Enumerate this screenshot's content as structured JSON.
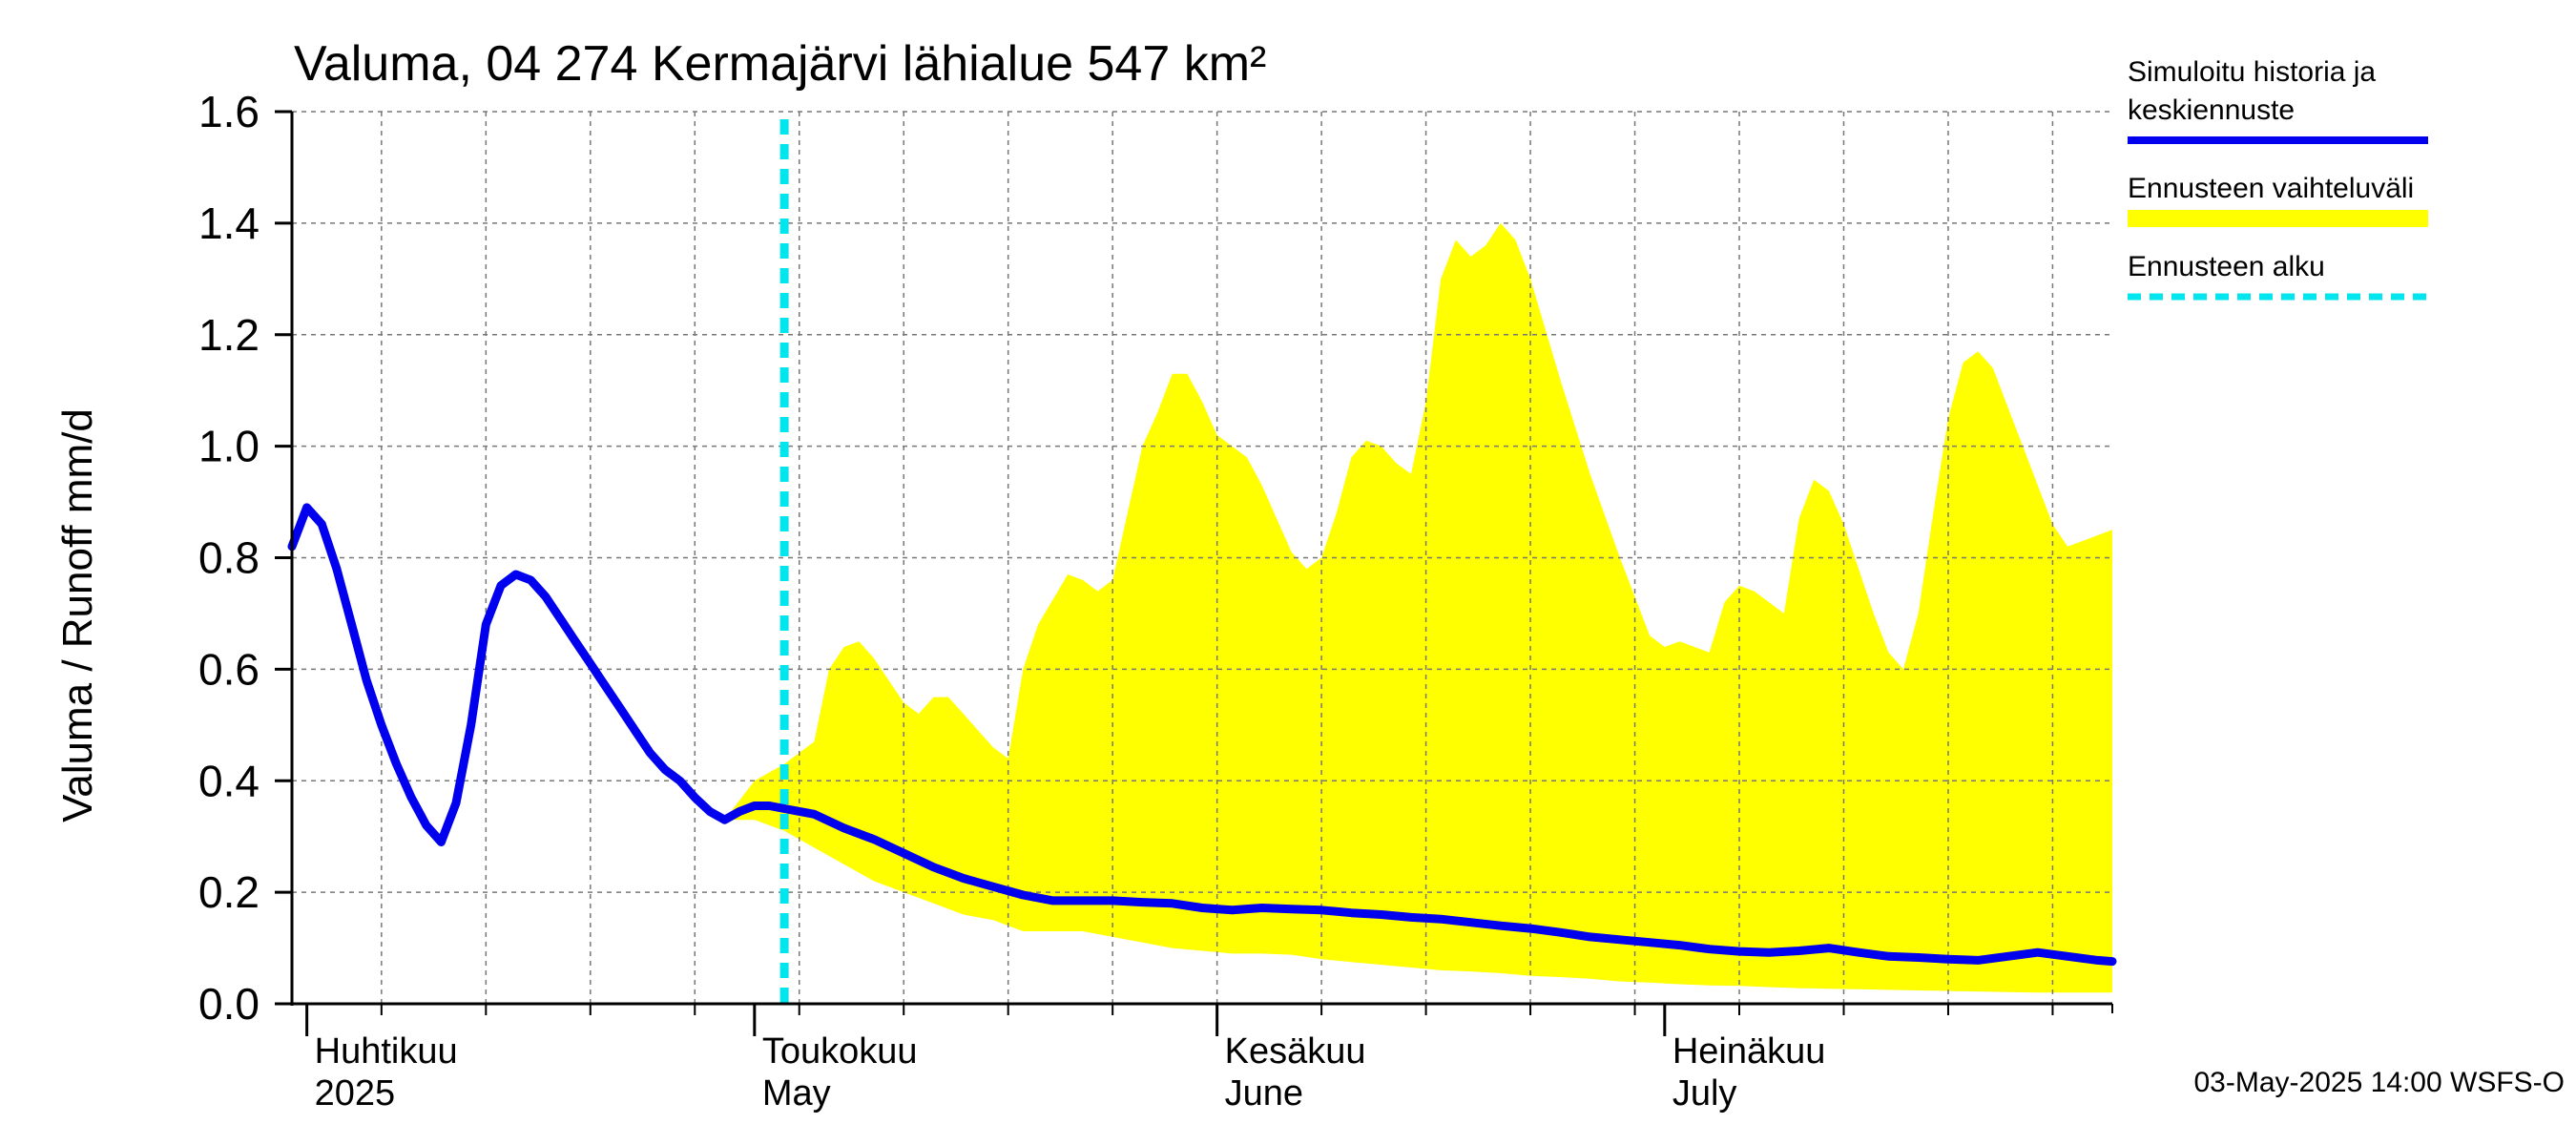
{
  "chart_data": {
    "type": "line",
    "title": "Valuma, 04 274 Kermajärvi lähialue 547 km²",
    "ylabel": "Valuma / Runoff    mm/d",
    "ylim": [
      0,
      1.6
    ],
    "yticks": [
      "0.0",
      "0.2",
      "0.4",
      "0.6",
      "0.8",
      "1.0",
      "1.2",
      "1.4",
      "1.6"
    ],
    "xlim": [
      "2025-03-31",
      "2025-07-31"
    ],
    "grid": true,
    "month_labels": [
      {
        "date": "2025-04-01",
        "fi": "Huhtikuu",
        "en": "2025"
      },
      {
        "date": "2025-05-01",
        "fi": "Toukokuu",
        "en": "May"
      },
      {
        "date": "2025-06-01",
        "fi": "Kesäkuu",
        "en": "June"
      },
      {
        "date": "2025-07-01",
        "fi": "Heinäkuu",
        "en": "July"
      }
    ],
    "forecast_start": "2025-05-03",
    "legend": {
      "placement": "right",
      "entries": [
        {
          "lines": [
            "Simuloitu historia ja",
            "keskiennuste"
          ],
          "color": "#0000ee",
          "style": "solid"
        },
        {
          "lines": [
            "Ennusteen vaihteluväli"
          ],
          "color": "#ffff00",
          "style": "band"
        },
        {
          "lines": [
            "Ennusteen alku"
          ],
          "color": "#00e5ee",
          "style": "dashed"
        }
      ]
    },
    "series": [
      {
        "name": "Simuloitu historia ja keskiennuste",
        "color": "#0000ee",
        "points": [
          [
            "2025-03-31",
            0.82
          ],
          [
            "2025-04-01",
            0.89
          ],
          [
            "2025-04-02",
            0.86
          ],
          [
            "2025-04-03",
            0.78
          ],
          [
            "2025-04-04",
            0.68
          ],
          [
            "2025-04-05",
            0.58
          ],
          [
            "2025-04-06",
            0.5
          ],
          [
            "2025-04-07",
            0.43
          ],
          [
            "2025-04-08",
            0.37
          ],
          [
            "2025-04-09",
            0.32
          ],
          [
            "2025-04-10",
            0.29
          ],
          [
            "2025-04-11",
            0.36
          ],
          [
            "2025-04-12",
            0.5
          ],
          [
            "2025-04-13",
            0.68
          ],
          [
            "2025-04-14",
            0.75
          ],
          [
            "2025-04-15",
            0.77
          ],
          [
            "2025-04-16",
            0.76
          ],
          [
            "2025-04-17",
            0.73
          ],
          [
            "2025-04-18",
            0.69
          ],
          [
            "2025-04-19",
            0.65
          ],
          [
            "2025-04-20",
            0.61
          ],
          [
            "2025-04-21",
            0.57
          ],
          [
            "2025-04-22",
            0.53
          ],
          [
            "2025-04-23",
            0.49
          ],
          [
            "2025-04-24",
            0.45
          ],
          [
            "2025-04-25",
            0.42
          ],
          [
            "2025-04-26",
            0.4
          ],
          [
            "2025-04-27",
            0.37
          ],
          [
            "2025-04-28",
            0.345
          ],
          [
            "2025-04-29",
            0.33
          ],
          [
            "2025-04-30",
            0.345
          ],
          [
            "2025-05-01",
            0.355
          ],
          [
            "2025-05-02",
            0.355
          ],
          [
            "2025-05-03",
            0.35
          ],
          [
            "2025-05-05",
            0.34
          ],
          [
            "2025-05-07",
            0.315
          ],
          [
            "2025-05-09",
            0.295
          ],
          [
            "2025-05-11",
            0.27
          ],
          [
            "2025-05-13",
            0.245
          ],
          [
            "2025-05-15",
            0.225
          ],
          [
            "2025-05-17",
            0.21
          ],
          [
            "2025-05-19",
            0.195
          ],
          [
            "2025-05-21",
            0.185
          ],
          [
            "2025-05-23",
            0.185
          ],
          [
            "2025-05-25",
            0.185
          ],
          [
            "2025-05-27",
            0.182
          ],
          [
            "2025-05-29",
            0.18
          ],
          [
            "2025-05-31",
            0.172
          ],
          [
            "2025-06-02",
            0.168
          ],
          [
            "2025-06-04",
            0.172
          ],
          [
            "2025-06-06",
            0.17
          ],
          [
            "2025-06-08",
            0.168
          ],
          [
            "2025-06-10",
            0.163
          ],
          [
            "2025-06-12",
            0.16
          ],
          [
            "2025-06-14",
            0.155
          ],
          [
            "2025-06-16",
            0.152
          ],
          [
            "2025-06-18",
            0.146
          ],
          [
            "2025-06-20",
            0.14
          ],
          [
            "2025-06-22",
            0.135
          ],
          [
            "2025-06-24",
            0.128
          ],
          [
            "2025-06-26",
            0.12
          ],
          [
            "2025-06-28",
            0.115
          ],
          [
            "2025-06-30",
            0.11
          ],
          [
            "2025-07-02",
            0.105
          ],
          [
            "2025-07-04",
            0.098
          ],
          [
            "2025-07-06",
            0.094
          ],
          [
            "2025-07-08",
            0.092
          ],
          [
            "2025-07-10",
            0.095
          ],
          [
            "2025-07-12",
            0.1
          ],
          [
            "2025-07-14",
            0.092
          ],
          [
            "2025-07-16",
            0.085
          ],
          [
            "2025-07-18",
            0.083
          ],
          [
            "2025-07-20",
            0.08
          ],
          [
            "2025-07-22",
            0.078
          ],
          [
            "2025-07-24",
            0.085
          ],
          [
            "2025-07-26",
            0.092
          ],
          [
            "2025-07-28",
            0.085
          ],
          [
            "2025-07-30",
            0.078
          ],
          [
            "2025-07-31",
            0.076
          ]
        ]
      }
    ],
    "band": {
      "name": "Ennusteen vaihteluväli",
      "color": "#ffff00",
      "upper": [
        [
          "2025-04-29",
          0.33
        ],
        [
          "2025-05-01",
          0.4
        ],
        [
          "2025-05-03",
          0.43
        ],
        [
          "2025-05-05",
          0.47
        ],
        [
          "2025-05-06",
          0.6
        ],
        [
          "2025-05-07",
          0.64
        ],
        [
          "2025-05-08",
          0.65
        ],
        [
          "2025-05-09",
          0.62
        ],
        [
          "2025-05-10",
          0.58
        ],
        [
          "2025-05-11",
          0.54
        ],
        [
          "2025-05-12",
          0.52
        ],
        [
          "2025-05-13",
          0.55
        ],
        [
          "2025-05-14",
          0.55
        ],
        [
          "2025-05-15",
          0.52
        ],
        [
          "2025-05-16",
          0.49
        ],
        [
          "2025-05-17",
          0.46
        ],
        [
          "2025-05-18",
          0.44
        ],
        [
          "2025-05-19",
          0.6
        ],
        [
          "2025-05-20",
          0.68
        ],
        [
          "2025-05-22",
          0.77
        ],
        [
          "2025-05-23",
          0.76
        ],
        [
          "2025-05-24",
          0.74
        ],
        [
          "2025-05-25",
          0.76
        ],
        [
          "2025-05-26",
          0.88
        ],
        [
          "2025-05-27",
          1.0
        ],
        [
          "2025-05-28",
          1.06
        ],
        [
          "2025-05-29",
          1.13
        ],
        [
          "2025-05-30",
          1.13
        ],
        [
          "2025-05-31",
          1.08
        ],
        [
          "2025-06-01",
          1.02
        ],
        [
          "2025-06-02",
          1.0
        ],
        [
          "2025-06-03",
          0.98
        ],
        [
          "2025-06-04",
          0.93
        ],
        [
          "2025-06-05",
          0.87
        ],
        [
          "2025-06-06",
          0.81
        ],
        [
          "2025-06-07",
          0.78
        ],
        [
          "2025-06-08",
          0.8
        ],
        [
          "2025-06-09",
          0.88
        ],
        [
          "2025-06-10",
          0.98
        ],
        [
          "2025-06-11",
          1.01
        ],
        [
          "2025-06-12",
          1.0
        ],
        [
          "2025-06-13",
          0.97
        ],
        [
          "2025-06-14",
          0.95
        ],
        [
          "2025-06-15",
          1.08
        ],
        [
          "2025-06-16",
          1.3
        ],
        [
          "2025-06-17",
          1.37
        ],
        [
          "2025-06-18",
          1.34
        ],
        [
          "2025-06-19",
          1.36
        ],
        [
          "2025-06-20",
          1.4
        ],
        [
          "2025-06-21",
          1.37
        ],
        [
          "2025-06-22",
          1.3
        ],
        [
          "2025-06-24",
          1.12
        ],
        [
          "2025-06-26",
          0.95
        ],
        [
          "2025-06-28",
          0.8
        ],
        [
          "2025-06-30",
          0.66
        ],
        [
          "2025-07-01",
          0.64
        ],
        [
          "2025-07-02",
          0.65
        ],
        [
          "2025-07-03",
          0.64
        ],
        [
          "2025-07-04",
          0.63
        ],
        [
          "2025-07-05",
          0.72
        ],
        [
          "2025-07-06",
          0.75
        ],
        [
          "2025-07-07",
          0.74
        ],
        [
          "2025-07-08",
          0.72
        ],
        [
          "2025-07-09",
          0.7
        ],
        [
          "2025-07-10",
          0.87
        ],
        [
          "2025-07-11",
          0.94
        ],
        [
          "2025-07-12",
          0.92
        ],
        [
          "2025-07-13",
          0.86
        ],
        [
          "2025-07-14",
          0.78
        ],
        [
          "2025-07-15",
          0.7
        ],
        [
          "2025-07-16",
          0.63
        ],
        [
          "2025-07-17",
          0.6
        ],
        [
          "2025-07-18",
          0.7
        ],
        [
          "2025-07-19",
          0.88
        ],
        [
          "2025-07-20",
          1.05
        ],
        [
          "2025-07-21",
          1.15
        ],
        [
          "2025-07-22",
          1.17
        ],
        [
          "2025-07-23",
          1.14
        ],
        [
          "2025-07-24",
          1.07
        ],
        [
          "2025-07-25",
          1.0
        ],
        [
          "2025-07-26",
          0.93
        ],
        [
          "2025-07-27",
          0.86
        ],
        [
          "2025-07-28",
          0.82
        ],
        [
          "2025-07-29",
          0.83
        ],
        [
          "2025-07-31",
          0.85
        ]
      ],
      "lower": [
        [
          "2025-04-29",
          0.33
        ],
        [
          "2025-05-01",
          0.33
        ],
        [
          "2025-05-03",
          0.31
        ],
        [
          "2025-05-05",
          0.28
        ],
        [
          "2025-05-07",
          0.25
        ],
        [
          "2025-05-09",
          0.22
        ],
        [
          "2025-05-11",
          0.2
        ],
        [
          "2025-05-13",
          0.18
        ],
        [
          "2025-05-15",
          0.16
        ],
        [
          "2025-05-17",
          0.15
        ],
        [
          "2025-05-19",
          0.13
        ],
        [
          "2025-05-21",
          0.13
        ],
        [
          "2025-05-23",
          0.13
        ],
        [
          "2025-05-25",
          0.12
        ],
        [
          "2025-05-27",
          0.11
        ],
        [
          "2025-05-29",
          0.1
        ],
        [
          "2025-05-31",
          0.095
        ],
        [
          "2025-06-02",
          0.09
        ],
        [
          "2025-06-04",
          0.09
        ],
        [
          "2025-06-06",
          0.088
        ],
        [
          "2025-06-08",
          0.08
        ],
        [
          "2025-06-10",
          0.075
        ],
        [
          "2025-06-12",
          0.07
        ],
        [
          "2025-06-14",
          0.065
        ],
        [
          "2025-06-16",
          0.06
        ],
        [
          "2025-06-18",
          0.058
        ],
        [
          "2025-06-20",
          0.055
        ],
        [
          "2025-06-22",
          0.05
        ],
        [
          "2025-06-24",
          0.048
        ],
        [
          "2025-06-26",
          0.045
        ],
        [
          "2025-06-28",
          0.04
        ],
        [
          "2025-06-30",
          0.038
        ],
        [
          "2025-07-02",
          0.035
        ],
        [
          "2025-07-04",
          0.033
        ],
        [
          "2025-07-06",
          0.032
        ],
        [
          "2025-07-08",
          0.03
        ],
        [
          "2025-07-10",
          0.028
        ],
        [
          "2025-07-12",
          0.027
        ],
        [
          "2025-07-14",
          0.026
        ],
        [
          "2025-07-16",
          0.025
        ],
        [
          "2025-07-18",
          0.024
        ],
        [
          "2025-07-20",
          0.023
        ],
        [
          "2025-07-22",
          0.022
        ],
        [
          "2025-07-24",
          0.021
        ],
        [
          "2025-07-26",
          0.02
        ],
        [
          "2025-07-28",
          0.02
        ],
        [
          "2025-07-31",
          0.02
        ]
      ]
    }
  },
  "footer": "03-May-2025 14:00 WSFS-O"
}
